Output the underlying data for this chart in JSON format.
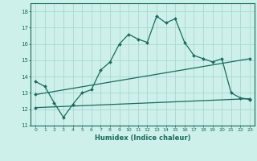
{
  "xlabel": "Humidex (Indice chaleur)",
  "ylabel": "",
  "background_color": "#cdf0ea",
  "line_color": "#1a6b5a",
  "grid_color": "#a8d8d0",
  "xlim": [
    -0.5,
    23.5
  ],
  "ylim": [
    11,
    18.5
  ],
  "yticks": [
    11,
    12,
    13,
    14,
    15,
    16,
    17,
    18
  ],
  "xticks": [
    0,
    1,
    2,
    3,
    4,
    5,
    6,
    7,
    8,
    9,
    10,
    11,
    12,
    13,
    14,
    15,
    16,
    17,
    18,
    19,
    20,
    21,
    22,
    23
  ],
  "curve1_x": [
    0,
    1,
    2,
    3,
    4,
    5,
    6,
    7,
    8,
    9,
    10,
    11,
    12,
    13,
    14,
    15,
    16,
    17,
    18,
    19,
    20,
    21,
    22,
    23
  ],
  "curve1_y": [
    13.7,
    13.4,
    12.4,
    11.5,
    12.3,
    13.0,
    13.2,
    14.4,
    14.9,
    16.0,
    16.6,
    16.3,
    16.1,
    17.7,
    17.3,
    17.55,
    16.1,
    15.3,
    15.1,
    14.9,
    15.1,
    13.0,
    12.7,
    12.6
  ],
  "curve2_x": [
    0,
    23
  ],
  "curve2_y": [
    12.9,
    15.1
  ],
  "curve3_x": [
    0,
    23
  ],
  "curve3_y": [
    12.1,
    12.65
  ]
}
